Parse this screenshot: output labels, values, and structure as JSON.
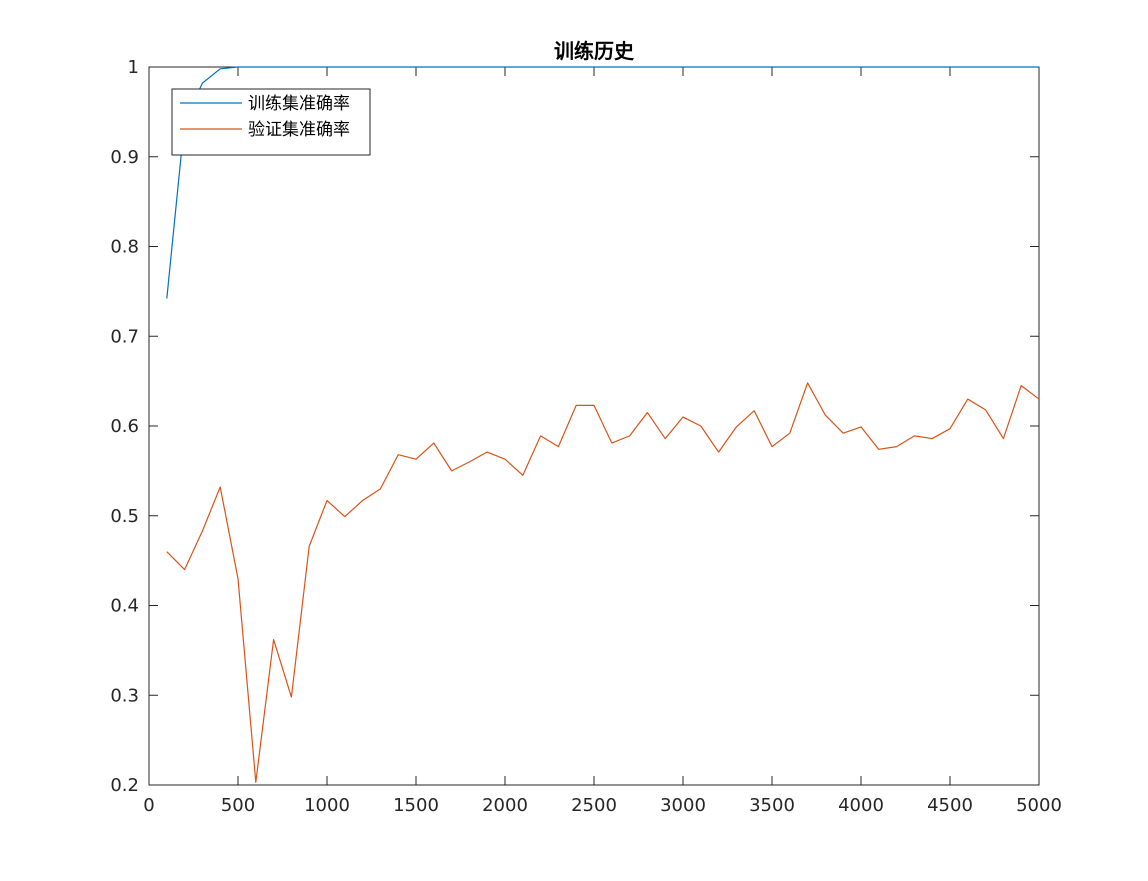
{
  "chart_data": {
    "type": "line",
    "title": "训练历史",
    "xlabel": "",
    "ylabel": "",
    "xlim": [
      0,
      5000
    ],
    "ylim": [
      0.2,
      1
    ],
    "xticks": [
      0,
      500,
      1000,
      1500,
      2000,
      2500,
      3000,
      3500,
      4000,
      4500,
      5000
    ],
    "yticks": [
      0.2,
      0.3,
      0.4,
      0.5,
      0.6,
      0.7,
      0.8,
      0.9,
      1
    ],
    "grid": false,
    "legend_position": "top-left",
    "series": [
      {
        "name": "训练集准确率",
        "color": "#0072bd",
        "x": [
          100,
          200,
          300,
          400,
          500,
          600,
          700,
          800,
          900,
          1000,
          1100,
          1200,
          1300,
          1400,
          1500,
          1600,
          1700,
          1800,
          1900,
          2000,
          2100,
          2200,
          2300,
          2400,
          2500,
          2600,
          2700,
          2800,
          2900,
          3000,
          3100,
          3200,
          3300,
          3400,
          3500,
          3600,
          3700,
          3800,
          3900,
          4000,
          4100,
          4200,
          4300,
          4400,
          4500,
          4600,
          4700,
          4800,
          4900,
          5000
        ],
        "values": [
          0.742,
          0.94,
          0.982,
          0.998,
          1,
          1,
          1,
          1,
          1,
          1,
          1,
          1,
          1,
          1,
          1,
          1,
          1,
          1,
          1,
          1,
          1,
          1,
          1,
          1,
          1,
          1,
          1,
          1,
          1,
          1,
          1,
          1,
          1,
          1,
          1,
          1,
          1,
          1,
          1,
          1,
          1,
          1,
          1,
          1,
          1,
          1,
          1,
          1,
          1,
          1
        ]
      },
      {
        "name": "验证集准确率",
        "color": "#d95319",
        "x": [
          100,
          200,
          300,
          400,
          500,
          600,
          700,
          800,
          900,
          1000,
          1100,
          1200,
          1300,
          1400,
          1500,
          1600,
          1700,
          1800,
          1900,
          2000,
          2100,
          2200,
          2300,
          2400,
          2500,
          2600,
          2700,
          2800,
          2900,
          3000,
          3100,
          3200,
          3300,
          3400,
          3500,
          3600,
          3700,
          3800,
          3900,
          4000,
          4100,
          4200,
          4300,
          4400,
          4500,
          4600,
          4700,
          4800,
          4900,
          5000
        ],
        "values": [
          0.46,
          0.44,
          0.483,
          0.532,
          0.43,
          0.203,
          0.362,
          0.298,
          0.466,
          0.517,
          0.499,
          0.517,
          0.53,
          0.568,
          0.563,
          0.581,
          0.55,
          0.56,
          0.571,
          0.563,
          0.545,
          0.589,
          0.577,
          0.623,
          0.623,
          0.581,
          0.589,
          0.615,
          0.586,
          0.61,
          0.6,
          0.571,
          0.599,
          0.617,
          0.577,
          0.592,
          0.648,
          0.612,
          0.592,
          0.599,
          0.574,
          0.577,
          0.589,
          0.586,
          0.597,
          0.63,
          0.618,
          0.586,
          0.645,
          0.63
        ]
      }
    ]
  }
}
